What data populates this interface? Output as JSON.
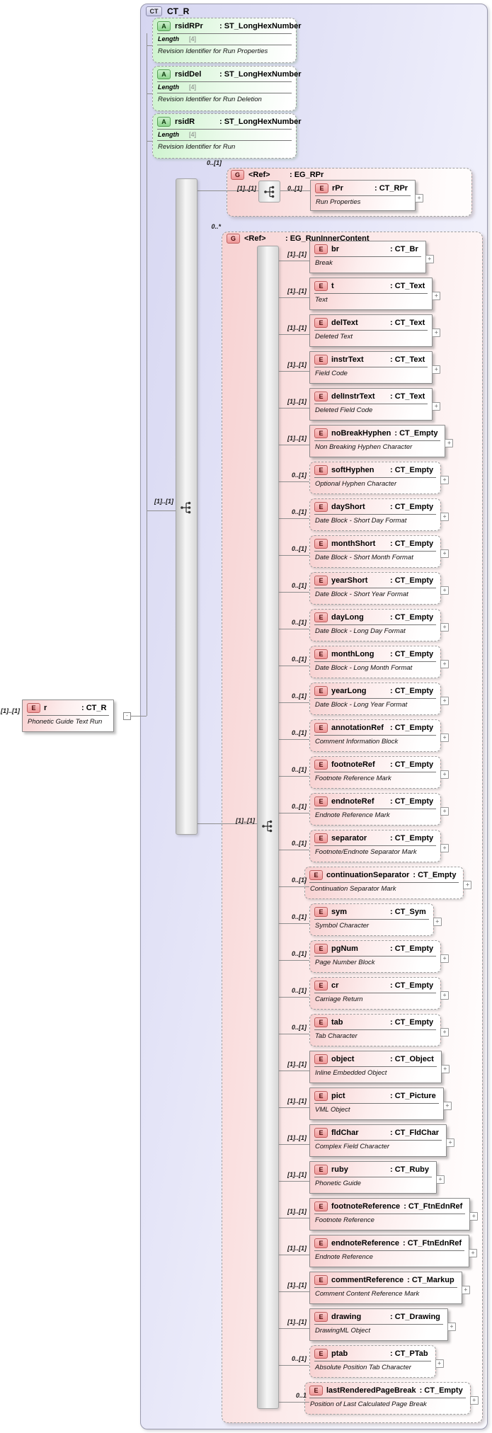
{
  "diagram_title": "CT_R",
  "expand_glyph": "+",
  "toggle_glyph": "-",
  "colors": {
    "complex_type_fill": "#d6d6f1",
    "attribute_fill": "#cdf3cd",
    "element_fill": "#f7cfcf",
    "group_fill": "#f7d2d2",
    "bar_fill": "#d7d7d7",
    "border_grey": "#9f9f9f",
    "badge_red": "#ee9898",
    "badge_green": "#8fd48f",
    "badge_lavender": "#c9c9e6"
  },
  "complex_type": {
    "badge": "CT",
    "name": "CT_R"
  },
  "root_element": {
    "cardinality": "[1]..[1]",
    "badge": "E",
    "name": "r",
    "type": ": CT_R",
    "annotation": "Phonetic Guide Text Run"
  },
  "sequence": {
    "cardinality": "[1]..[1]"
  },
  "attributes": [
    {
      "badge": "A",
      "name": "rsidRPr",
      "type": ": ST_LongHexNumber",
      "facet_name": "Length",
      "facet_value": "[4]",
      "annotation": "Revision Identifier for Run Properties"
    },
    {
      "badge": "A",
      "name": "rsidDel",
      "type": ": ST_LongHexNumber",
      "facet_name": "Length",
      "facet_value": "[4]",
      "annotation": "Revision Identifier for Run Deletion"
    },
    {
      "badge": "A",
      "name": "rsidR",
      "type": ": ST_LongHexNumber",
      "facet_name": "Length",
      "facet_value": "[4]",
      "annotation": "Revision Identifier for Run"
    }
  ],
  "groups": {
    "rpr": {
      "cardinality": "0..[1]",
      "badge": "G",
      "label": "<Ref>",
      "type": ": EG_RPr",
      "sequence_cardinality": "[1]..[1]",
      "child": {
        "cardinality": "0..[1]",
        "badge": "E",
        "name": "rPr",
        "type": ": CT_RPr",
        "annotation": "Run Properties"
      }
    },
    "run_inner": {
      "cardinality": "0..*",
      "badge": "G",
      "label": "<Ref>",
      "type": ": EG_RunInnerContent",
      "choice_cardinality": "[1]..[1]",
      "elements": [
        {
          "badge": "E",
          "name": "br",
          "type": ": CT_Br",
          "annotation": "Break",
          "cardinality": "[1]..[1]",
          "required": true
        },
        {
          "badge": "E",
          "name": "t",
          "type": ": CT_Text",
          "annotation": "Text",
          "cardinality": "[1]..[1]",
          "required": true
        },
        {
          "badge": "E",
          "name": "delText",
          "type": ": CT_Text",
          "annotation": "Deleted Text",
          "cardinality": "[1]..[1]",
          "required": true
        },
        {
          "badge": "E",
          "name": "instrText",
          "type": ": CT_Text",
          "annotation": "Field Code",
          "cardinality": "[1]..[1]",
          "required": true
        },
        {
          "badge": "E",
          "name": "delInstrText",
          "type": ": CT_Text",
          "annotation": "Deleted Field Code",
          "cardinality": "[1]..[1]",
          "required": true
        },
        {
          "badge": "E",
          "name": "noBreakHyphen",
          "type": ": CT_Empty",
          "annotation": "Non Breaking Hyphen Character",
          "cardinality": "[1]..[1]",
          "required": true
        },
        {
          "badge": "E",
          "name": "softHyphen",
          "type": ": CT_Empty",
          "annotation": "Optional Hyphen Character",
          "cardinality": "0..[1]",
          "required": false
        },
        {
          "badge": "E",
          "name": "dayShort",
          "type": ": CT_Empty",
          "annotation": "Date Block - Short Day Format",
          "cardinality": "0..[1]",
          "required": false
        },
        {
          "badge": "E",
          "name": "monthShort",
          "type": ": CT_Empty",
          "annotation": "Date Block - Short Month Format",
          "cardinality": "0..[1]",
          "required": false
        },
        {
          "badge": "E",
          "name": "yearShort",
          "type": ": CT_Empty",
          "annotation": "Date Block - Short Year Format",
          "cardinality": "0..[1]",
          "required": false
        },
        {
          "badge": "E",
          "name": "dayLong",
          "type": ": CT_Empty",
          "annotation": "Date Block - Long Day Format",
          "cardinality": "0..[1]",
          "required": false
        },
        {
          "badge": "E",
          "name": "monthLong",
          "type": ": CT_Empty",
          "annotation": "Date Block - Long Month Format",
          "cardinality": "0..[1]",
          "required": false
        },
        {
          "badge": "E",
          "name": "yearLong",
          "type": ": CT_Empty",
          "annotation": "Date Block - Long Year Format",
          "cardinality": "0..[1]",
          "required": false
        },
        {
          "badge": "E",
          "name": "annotationRef",
          "type": ": CT_Empty",
          "annotation": "Comment Information Block",
          "cardinality": "0..[1]",
          "required": false
        },
        {
          "badge": "E",
          "name": "footnoteRef",
          "type": ": CT_Empty",
          "annotation": "Footnote Reference Mark",
          "cardinality": "0..[1]",
          "required": false
        },
        {
          "badge": "E",
          "name": "endnoteRef",
          "type": ": CT_Empty",
          "annotation": "Endnote Reference Mark",
          "cardinality": "0..[1]",
          "required": false
        },
        {
          "badge": "E",
          "name": "separator",
          "type": ": CT_Empty",
          "annotation": "Footnote/Endnote Separator Mark",
          "cardinality": "0..[1]",
          "required": false
        },
        {
          "badge": "E",
          "name": "continuationSeparator",
          "type": ": CT_Empty",
          "annotation": "Continuation Separator Mark",
          "cardinality": "0..[1]",
          "required": false
        },
        {
          "badge": "E",
          "name": "sym",
          "type": ": CT_Sym",
          "annotation": "Symbol Character",
          "cardinality": "0..[1]",
          "required": false
        },
        {
          "badge": "E",
          "name": "pgNum",
          "type": ": CT_Empty",
          "annotation": "Page Number Block",
          "cardinality": "0..[1]",
          "required": false
        },
        {
          "badge": "E",
          "name": "cr",
          "type": ": CT_Empty",
          "annotation": "Carriage Return",
          "cardinality": "0..[1]",
          "required": false
        },
        {
          "badge": "E",
          "name": "tab",
          "type": ": CT_Empty",
          "annotation": "Tab Character",
          "cardinality": "0..[1]",
          "required": false
        },
        {
          "badge": "E",
          "name": "object",
          "type": ": CT_Object",
          "annotation": "Inline Embedded Object",
          "cardinality": "[1]..[1]",
          "required": true
        },
        {
          "badge": "E",
          "name": "pict",
          "type": ": CT_Picture",
          "annotation": "VML Object",
          "cardinality": "[1]..[1]",
          "required": true
        },
        {
          "badge": "E",
          "name": "fldChar",
          "type": ": CT_FldChar",
          "annotation": "Complex Field Character",
          "cardinality": "[1]..[1]",
          "required": true
        },
        {
          "badge": "E",
          "name": "ruby",
          "type": ": CT_Ruby",
          "annotation": "Phonetic Guide",
          "cardinality": "[1]..[1]",
          "required": true
        },
        {
          "badge": "E",
          "name": "footnoteReference",
          "type": ": CT_FtnEdnRef",
          "annotation": "Footnote Reference",
          "cardinality": "[1]..[1]",
          "required": true
        },
        {
          "badge": "E",
          "name": "endnoteReference",
          "type": ": CT_FtnEdnRef",
          "annotation": "Endnote Reference",
          "cardinality": "[1]..[1]",
          "required": true
        },
        {
          "badge": "E",
          "name": "commentReference",
          "type": ": CT_Markup",
          "annotation": "Comment Content Reference Mark",
          "cardinality": "[1]..[1]",
          "required": true
        },
        {
          "badge": "E",
          "name": "drawing",
          "type": ": CT_Drawing",
          "annotation": "DrawingML Object",
          "cardinality": "[1]..[1]",
          "required": true
        },
        {
          "badge": "E",
          "name": "ptab",
          "type": ": CT_PTab",
          "annotation": "Absolute Position Tab Character",
          "cardinality": "0..[1]",
          "required": false
        },
        {
          "badge": "E",
          "name": "lastRenderedPageBreak",
          "type": ": CT_Empty",
          "annotation": "Position of Last Calculated Page Break",
          "cardinality": "0..1",
          "required": false
        }
      ]
    }
  }
}
